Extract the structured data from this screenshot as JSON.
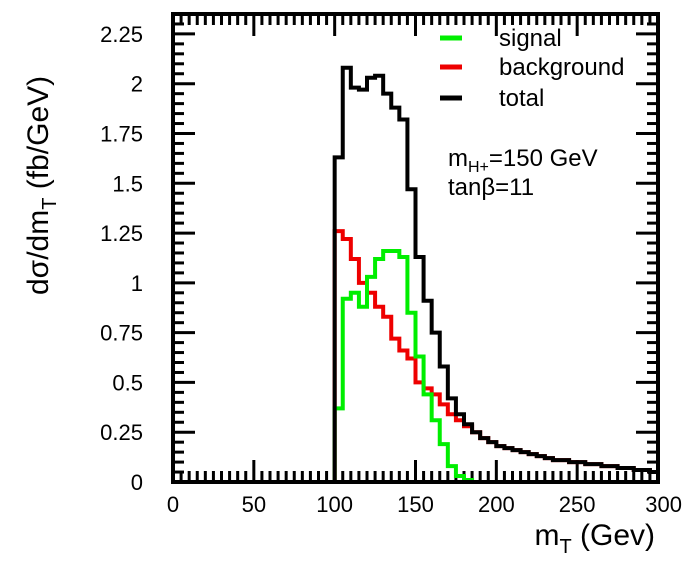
{
  "chart_data": {
    "type": "line",
    "title": "",
    "xlabel": {
      "base": "m",
      "sub": "T",
      "rest": " (Gev)"
    },
    "ylabel": {
      "base": "dσ/dm",
      "sub": "T",
      "rest": " (fb/GeV)"
    },
    "xlim": [
      0,
      300
    ],
    "ylim": [
      0,
      2.35
    ],
    "x_ticks": [
      0,
      50,
      100,
      150,
      200,
      250,
      300
    ],
    "y_ticks": [
      0,
      0.25,
      0.5,
      0.75,
      1,
      1.25,
      1.5,
      1.75,
      2,
      2.25
    ],
    "x_tick_labels": [
      "0",
      "50",
      "100",
      "150",
      "200",
      "250",
      "300"
    ],
    "y_tick_labels": [
      "0",
      "0.25",
      "0.5",
      "0.75",
      "1",
      "1.25",
      "1.5",
      "1.75",
      "2",
      "2.25"
    ],
    "grid": false,
    "legend_position": "top-right",
    "bin_width": 5,
    "x_start": 100,
    "series": [
      {
        "name": "signal",
        "color": "#00ee00",
        "values": [
          0.37,
          0.92,
          0.95,
          0.88,
          1.03,
          1.12,
          1.16,
          1.16,
          1.13,
          0.85,
          0.63,
          0.44,
          0.31,
          0.19,
          0.08,
          0.03,
          0.01,
          0.0,
          0.0,
          0.0,
          0.0,
          0.0,
          0.0,
          0.0,
          0.0,
          0.0,
          0.0,
          0.0,
          0.0,
          0.0,
          0.0,
          0.0,
          0.0,
          0.0,
          0.0,
          0.0,
          0.0,
          0.0,
          0.0,
          0.0
        ]
      },
      {
        "name": "background",
        "color": "#ee0000",
        "values": [
          1.26,
          1.22,
          1.12,
          1.0,
          0.95,
          0.88,
          0.83,
          0.72,
          0.66,
          0.62,
          0.5,
          0.47,
          0.44,
          0.39,
          0.34,
          0.31,
          0.28,
          0.25,
          0.22,
          0.2,
          0.18,
          0.17,
          0.16,
          0.15,
          0.14,
          0.13,
          0.12,
          0.11,
          0.11,
          0.1,
          0.1,
          0.09,
          0.09,
          0.08,
          0.08,
          0.07,
          0.07,
          0.06,
          0.06,
          0.05
        ]
      },
      {
        "name": "total",
        "color": "#000000",
        "values": [
          1.63,
          2.08,
          1.98,
          1.97,
          2.03,
          2.04,
          1.95,
          1.88,
          1.82,
          1.47,
          1.13,
          0.91,
          0.75,
          0.58,
          0.42,
          0.34,
          0.29,
          0.25,
          0.22,
          0.2,
          0.18,
          0.17,
          0.16,
          0.15,
          0.14,
          0.13,
          0.12,
          0.11,
          0.11,
          0.1,
          0.1,
          0.09,
          0.09,
          0.08,
          0.08,
          0.07,
          0.07,
          0.06,
          0.06,
          0.05
        ]
      }
    ],
    "annotations": {
      "mass": {
        "base": "m",
        "sub": "H+",
        "rest": "=150 GeV"
      },
      "tanb": "tanβ=11"
    }
  }
}
